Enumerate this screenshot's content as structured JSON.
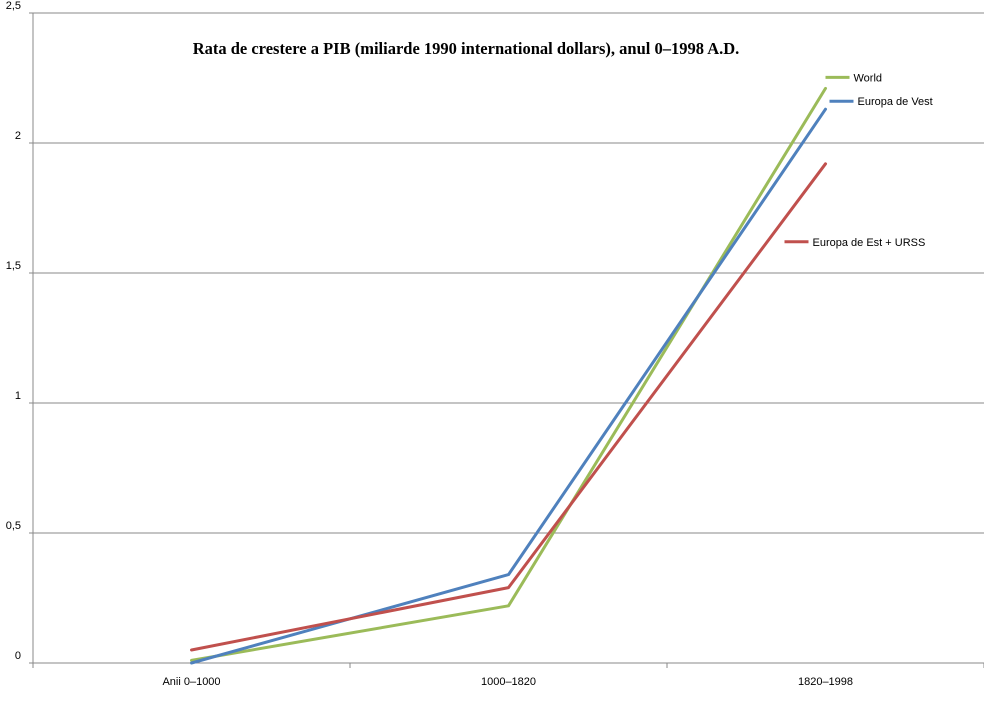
{
  "chart_data": {
    "type": "line",
    "title": "Rata de crestere a PIB (miliarde 1990 international dollars), anul 0–1998 A.D.",
    "xlabel": "",
    "ylabel": "",
    "categories": [
      "Anii 0–1000",
      "1000–1820",
      "1820–1998"
    ],
    "y_ticks": [
      "0",
      "0,5",
      "1",
      "1,5",
      "2",
      "2,5"
    ],
    "ylim": [
      0,
      2.5
    ],
    "grid": true,
    "legend_placement": "right",
    "series": [
      {
        "name": "World",
        "values": [
          0.01,
          0.22,
          2.21
        ],
        "color": "#9BBB59"
      },
      {
        "name": "Europa de Vest",
        "values": [
          0.0,
          0.34,
          2.13
        ],
        "color": "#4F81BD"
      },
      {
        "name": "Europa de Est + URSS",
        "values": [
          0.05,
          0.29,
          1.92
        ],
        "color": "#C0504D"
      }
    ]
  }
}
